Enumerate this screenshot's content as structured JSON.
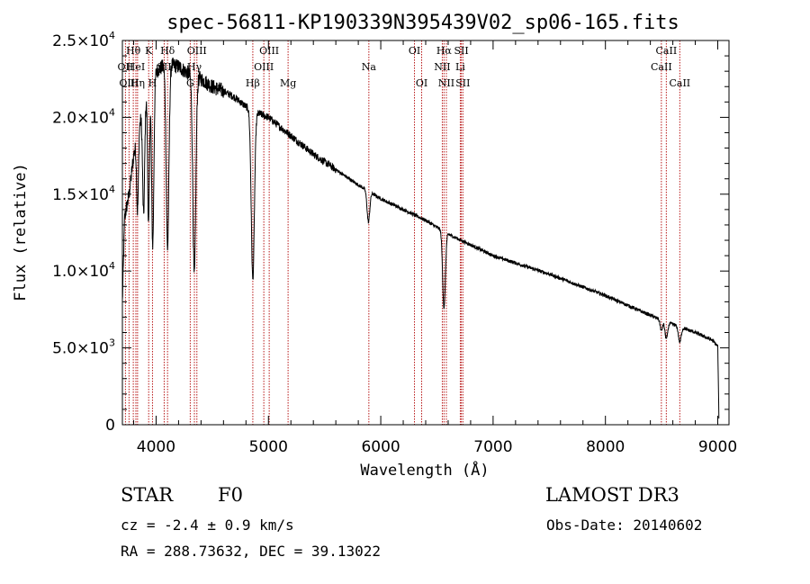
{
  "chart_data": {
    "type": "line",
    "title": "spec-56811-KP190339N395439V02_sp06-165.fits",
    "xlabel": "Wavelength (Å)",
    "ylabel": "Flux (relative)",
    "xlim": [
      3700,
      9100
    ],
    "ylim": [
      0,
      25000
    ],
    "x_ticks": [
      4000,
      5000,
      6000,
      7000,
      8000,
      9000
    ],
    "x_tick_labels": [
      "4000",
      "5000",
      "6000",
      "7000",
      "8000",
      "9000"
    ],
    "y_ticks": [
      0,
      5000,
      10000,
      15000,
      20000,
      25000
    ],
    "y_tick_labels": [
      {
        "mant": "0",
        "exp": ""
      },
      {
        "mant": "5.0×10",
        "exp": "3"
      },
      {
        "mant": "1.0×10",
        "exp": "4"
      },
      {
        "mant": "1.5×10",
        "exp": "4"
      },
      {
        "mant": "2.0×10",
        "exp": "4"
      },
      {
        "mant": "2.5×10",
        "exp": "4"
      }
    ],
    "continuum": [
      [
        3700,
        8000
      ],
      [
        3720,
        13500
      ],
      [
        3760,
        15000
      ],
      [
        3800,
        17500
      ],
      [
        3850,
        19500
      ],
      [
        3900,
        21000
      ],
      [
        3950,
        22500
      ],
      [
        4000,
        23000
      ],
      [
        4100,
        23500
      ],
      [
        4200,
        23300
      ],
      [
        4300,
        22800
      ],
      [
        4400,
        22500
      ],
      [
        4500,
        22000
      ],
      [
        4600,
        21700
      ],
      [
        4700,
        21300
      ],
      [
        4800,
        20700
      ],
      [
        4900,
        20300
      ],
      [
        5000,
        20000
      ],
      [
        5200,
        18800
      ],
      [
        5400,
        17600
      ],
      [
        5600,
        16600
      ],
      [
        5800,
        15600
      ],
      [
        6000,
        14700
      ],
      [
        6200,
        14000
      ],
      [
        6400,
        13300
      ],
      [
        6600,
        12400
      ],
      [
        6800,
        11700
      ],
      [
        7000,
        11000
      ],
      [
        7500,
        9800
      ],
      [
        8000,
        8400
      ],
      [
        8500,
        6800
      ],
      [
        8800,
        6000
      ],
      [
        8950,
        5500
      ],
      [
        9000,
        5100
      ],
      [
        9010,
        500
      ]
    ],
    "absorption_lines": [
      {
        "center": 3835,
        "depth": 5000,
        "width": 8
      },
      {
        "center": 3889,
        "depth": 7000,
        "width": 9
      },
      {
        "center": 3933,
        "depth": 9000,
        "width": 8
      },
      {
        "center": 3970,
        "depth": 11000,
        "width": 10
      },
      {
        "center": 4102,
        "depth": 12000,
        "width": 12
      },
      {
        "center": 4340,
        "depth": 13000,
        "width": 13
      },
      {
        "center": 4861,
        "depth": 11000,
        "width": 14
      },
      {
        "center": 5890,
        "depth": 2000,
        "width": 12
      },
      {
        "center": 6563,
        "depth": 5000,
        "width": 12
      },
      {
        "center": 8498,
        "depth": 700,
        "width": 10
      },
      {
        "center": 8542,
        "depth": 1100,
        "width": 12
      },
      {
        "center": 8662,
        "depth": 1000,
        "width": 12
      }
    ],
    "noise_amplitude": 500,
    "line_markers": [
      {
        "label": "Hθ",
        "wl": 3797,
        "row": 1
      },
      {
        "label": "OII",
        "wl": 3727,
        "row": 2
      },
      {
        "label": "HeI",
        "wl": 3820,
        "row": 2
      },
      {
        "label": "OIII",
        "wl": 3759,
        "row": 3
      },
      {
        "label": "Hη",
        "wl": 3835,
        "row": 3
      },
      {
        "label": "K",
        "wl": 3934,
        "row": 1
      },
      {
        "label": "H",
        "wl": 3968,
        "row": 3
      },
      {
        "label": "Hδ",
        "wl": 4102,
        "row": 1
      },
      {
        "label": "SII",
        "wl": 4072,
        "row": 2
      },
      {
        "label": "OIII",
        "wl": 4363,
        "row": 1
      },
      {
        "label": "Hγ",
        "wl": 4341,
        "row": 2
      },
      {
        "label": "G",
        "wl": 4304,
        "row": 3
      },
      {
        "label": "Hβ",
        "wl": 4861,
        "row": 3
      },
      {
        "label": "OIII",
        "wl": 4959,
        "row": 2
      },
      {
        "label": "OIII",
        "wl": 5007,
        "row": 1
      },
      {
        "label": "Mg",
        "wl": 5175,
        "row": 3
      },
      {
        "label": "Na",
        "wl": 5894,
        "row": 2
      },
      {
        "label": "OI",
        "wl": 6300,
        "row": 1
      },
      {
        "label": "OI",
        "wl": 6364,
        "row": 3
      },
      {
        "label": "Hα",
        "wl": 6563,
        "row": 1
      },
      {
        "label": "NII",
        "wl": 6548,
        "row": 2
      },
      {
        "label": "NII",
        "wl": 6584,
        "row": 3
      },
      {
        "label": "SII",
        "wl": 6717,
        "row": 1
      },
      {
        "label": "Li",
        "wl": 6708,
        "row": 2
      },
      {
        "label": "SII",
        "wl": 6731,
        "row": 3
      },
      {
        "label": "CaII",
        "wl": 8498,
        "row": 2
      },
      {
        "label": "CaII",
        "wl": 8542,
        "row": 1
      },
      {
        "label": "CaII",
        "wl": 8662,
        "row": 3
      }
    ]
  },
  "info": {
    "object_class": "STAR",
    "subclass": "F0",
    "survey": "LAMOST DR3",
    "cz": "cz = -2.4 ± 0.9 km/s",
    "obs_date": "Obs-Date: 20140602",
    "coords": "RA = 288.73632, DEC =  39.13022"
  },
  "colors": {
    "spectrum": "#000000",
    "marker": "#b81818",
    "axis": "#000000"
  }
}
